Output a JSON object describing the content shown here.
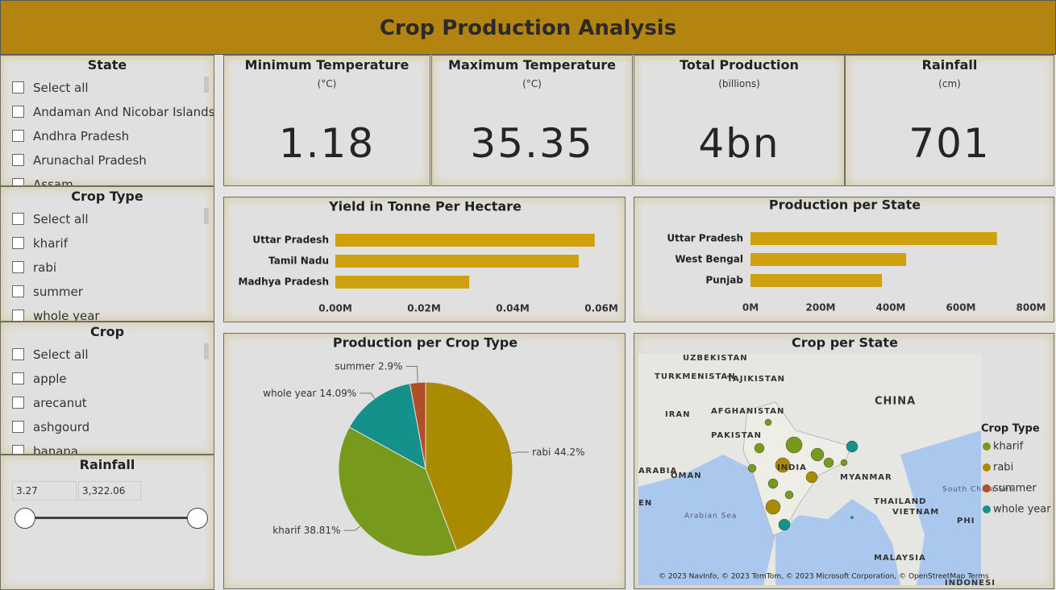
{
  "header": {
    "title": "Crop Production Analysis"
  },
  "slicers": [
    {
      "title": "State",
      "items": [
        "Select all",
        "Andaman And Nicobar Islands",
        "Andhra Pradesh",
        "Arunachal Pradesh",
        "Assam"
      ]
    },
    {
      "title": "Crop Type",
      "items": [
        "Select all",
        "kharif",
        "rabi",
        "summer",
        "whole year"
      ]
    },
    {
      "title": "Crop",
      "items": [
        "Select all",
        "apple",
        "arecanut",
        "ashgourd",
        "banana"
      ]
    }
  ],
  "range_slicer": {
    "title": "Rainfall",
    "min": "3.27",
    "max": "3,322.06"
  },
  "cards": [
    {
      "title": "Minimum Temperature",
      "subtitle": "(°C)",
      "value": "1.18"
    },
    {
      "title": "Maximum Temperature",
      "subtitle": "(°C)",
      "value": "35.35"
    },
    {
      "title": "Total Production",
      "subtitle": "(billions)",
      "value": "4bn"
    },
    {
      "title": "Rainfall",
      "subtitle": "(cm)",
      "value": "701"
    }
  ],
  "chart_data": [
    {
      "type": "hbar",
      "title": "Yield in Tonne Per Hectare",
      "categories": [
        "Uttar Pradesh",
        "Tamil Nadu",
        "Madhya Pradesh"
      ],
      "values": [
        0.0585,
        0.0549,
        0.0302
      ],
      "color": "#cfa10f",
      "xlim": [
        0,
        0.06
      ],
      "xticks": [
        {
          "value": 0,
          "label": "0.00M"
        },
        {
          "value": 0.02,
          "label": "0.02M"
        },
        {
          "value": 0.04,
          "label": "0.04M"
        },
        {
          "value": 0.06,
          "label": "0.06M"
        }
      ]
    },
    {
      "type": "hbar",
      "title": "Production per State",
      "categories": [
        "Uttar Pradesh",
        "West Bengal",
        "Punjab"
      ],
      "values": [
        703,
        444,
        375
      ],
      "color": "#cfa10f",
      "xlim": [
        0,
        800
      ],
      "xticks": [
        {
          "value": 0,
          "label": "0M"
        },
        {
          "value": 200,
          "label": "200M"
        },
        {
          "value": 400,
          "label": "400M"
        },
        {
          "value": 600,
          "label": "600M"
        },
        {
          "value": 800,
          "label": "800M"
        }
      ]
    },
    {
      "type": "pie",
      "title": "Production per Crop Type",
      "categories": [
        "rabi",
        "kharif",
        "whole year",
        "summer"
      ],
      "values": [
        44.2,
        38.81,
        14.09,
        2.9
      ],
      "value_labels": [
        "44.2%",
        "38.81%",
        "14.09%",
        "2.9%"
      ],
      "colors": [
        "#a88b00",
        "#779a1c",
        "#14918a",
        "#b24e25"
      ]
    }
  ],
  "map": {
    "title": "Crop per State",
    "legend_title": "Crop Type",
    "labels": [
      "UZBEKISTAN",
      "TURKMENISTAN",
      "TAJIKISTAN",
      "IRAN",
      "AFGHANISTAN",
      "PAKISTAN",
      "CHINA",
      "ARABIA",
      "OMAN",
      "INDIA",
      "MYANMAR",
      "THAILAND",
      "VIETNAM",
      "South China Sea",
      "Arabian Sea",
      "MALAYSIA",
      "EN",
      "PHI",
      "INDONESI"
    ],
    "attribution": "© 2023 NavInfo, © 2023 TomTom, © 2023 Microsoft Corporation, © OpenStreetMap  Terms"
  }
}
